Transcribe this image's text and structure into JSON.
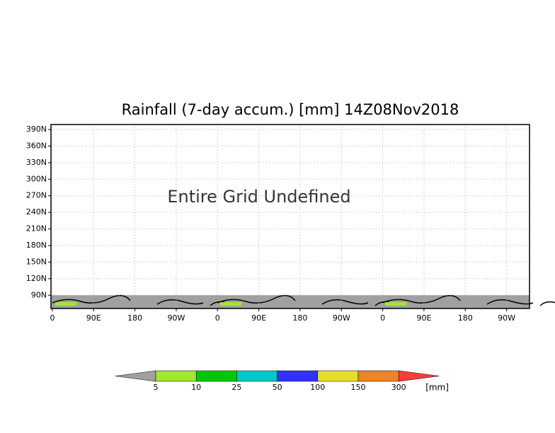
{
  "chart_data": {
    "type": "map",
    "title": "Rainfall (7-day accum.) [mm] 14Z08Nov2018",
    "annotation": "Entire Grid Undefined",
    "xlim": [
      -3,
      1040
    ],
    "ylim": [
      66,
      399
    ],
    "xticks": [
      {
        "value": 0,
        "label": "0"
      },
      {
        "value": 90,
        "label": "90E"
      },
      {
        "value": 180,
        "label": "180"
      },
      {
        "value": 270,
        "label": "90W"
      },
      {
        "value": 360,
        "label": "0"
      },
      {
        "value": 450,
        "label": "90E"
      },
      {
        "value": 540,
        "label": "180"
      },
      {
        "value": 630,
        "label": "90W"
      },
      {
        "value": 720,
        "label": "0"
      },
      {
        "value": 810,
        "label": "90E"
      },
      {
        "value": 900,
        "label": "180"
      },
      {
        "value": 990,
        "label": "90W"
      }
    ],
    "yticks": [
      {
        "value": 90,
        "label": "90N"
      },
      {
        "value": 120,
        "label": "120N"
      },
      {
        "value": 150,
        "label": "150N"
      },
      {
        "value": 180,
        "label": "180N"
      },
      {
        "value": 210,
        "label": "210N"
      },
      {
        "value": 240,
        "label": "240N"
      },
      {
        "value": 270,
        "label": "270N"
      },
      {
        "value": 300,
        "label": "300N"
      },
      {
        "value": 330,
        "label": "330N"
      },
      {
        "value": 360,
        "label": "360N"
      },
      {
        "value": 390,
        "label": "390N"
      }
    ],
    "grid": true,
    "undefined_color": "#a0a0a0",
    "colorbar": {
      "levels": [
        5,
        10,
        25,
        50,
        100,
        150,
        300
      ],
      "colors": [
        "#a0a0a0",
        "#a0e632",
        "#00c800",
        "#00c8c8",
        "#3232fa",
        "#e6dc32",
        "#f08228",
        "#fa3c3c"
      ],
      "units": "[mm]"
    }
  }
}
